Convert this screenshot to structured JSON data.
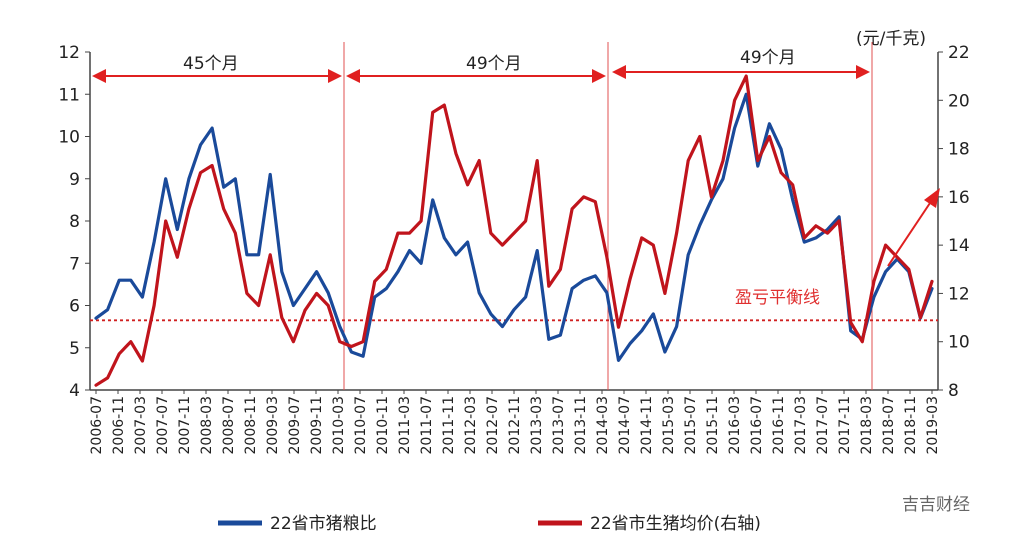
{
  "chart_data": {
    "type": "line",
    "y_left": {
      "ticks": [
        4,
        5,
        6,
        7,
        8,
        9,
        10,
        11,
        12
      ],
      "range": [
        4,
        12
      ]
    },
    "y_right": {
      "ticks": [
        8,
        10,
        12,
        14,
        16,
        18,
        20,
        22
      ],
      "range": [
        8,
        22
      ],
      "unit": "(元/千克)"
    },
    "x_ticks": [
      "2006-07",
      "2006-11",
      "2007-03",
      "2007-07",
      "2007-11",
      "2008-03",
      "2008-07",
      "2008-11",
      "2009-03",
      "2009-07",
      "2009-11",
      "2010-03",
      "2010-07",
      "2010-11",
      "2011-03",
      "2011-07",
      "2011-11",
      "2012-03",
      "2012-07",
      "2012-11",
      "2013-03",
      "2013-07",
      "2013-11",
      "2014-03",
      "2014-07",
      "2014-11",
      "2015-03",
      "2015-07",
      "2015-11",
      "2016-03",
      "2016-07",
      "2016-11",
      "2017-03",
      "2017-07",
      "2017-11",
      "2018-03",
      "2018-07",
      "2018-11",
      "2019-03"
    ],
    "series": [
      {
        "name": "22省市猪粮比",
        "axis": "left",
        "color": "#1a4a9a",
        "values": [
          5.7,
          5.9,
          6.6,
          6.6,
          6.2,
          7.5,
          9.0,
          7.8,
          9.0,
          9.8,
          10.2,
          8.8,
          9.0,
          7.2,
          7.2,
          9.1,
          6.8,
          6.0,
          6.4,
          6.8,
          6.3,
          5.5,
          4.9,
          4.8,
          6.2,
          6.4,
          6.8,
          7.3,
          7.0,
          8.5,
          7.6,
          7.2,
          7.5,
          6.3,
          5.8,
          5.5,
          5.9,
          6.2,
          7.3,
          5.2,
          5.3,
          6.4,
          6.6,
          6.7,
          6.3,
          4.7,
          5.1,
          5.4,
          5.8,
          4.9,
          5.5,
          7.2,
          7.9,
          8.5,
          9.0,
          10.2,
          11.0,
          9.3,
          10.3,
          9.7,
          8.5,
          7.5,
          7.6,
          7.8,
          8.1,
          5.4,
          5.2,
          6.2,
          6.8,
          7.1,
          6.8,
          5.7,
          6.4
        ]
      },
      {
        "name": "22省市生猪均价(右轴)",
        "axis": "right",
        "color": "#c0141c",
        "values": [
          8.2,
          8.5,
          9.5,
          10.0,
          9.2,
          11.5,
          15.0,
          13.5,
          15.5,
          17.0,
          17.3,
          15.5,
          14.5,
          12.0,
          11.5,
          13.6,
          11.0,
          10.0,
          11.3,
          12.0,
          11.5,
          10.0,
          9.8,
          10.0,
          12.5,
          13.0,
          14.5,
          14.5,
          15.0,
          19.5,
          19.8,
          17.8,
          16.5,
          17.5,
          14.5,
          14.0,
          14.5,
          15.0,
          17.5,
          12.3,
          13.0,
          15.5,
          16.0,
          15.8,
          13.5,
          10.6,
          12.6,
          14.3,
          14.0,
          12.0,
          14.5,
          17.5,
          18.5,
          16.0,
          17.5,
          20.0,
          21.0,
          17.5,
          18.5,
          17.0,
          16.5,
          14.3,
          14.8,
          14.5,
          15.0,
          10.8,
          10.0,
          12.5,
          14.0,
          13.5,
          13.0,
          11.0,
          12.5
        ]
      }
    ],
    "baseline": {
      "value": 5.65,
      "axis": "left",
      "label": "盈亏平衡线"
    },
    "periods": [
      "45个月",
      "49个月",
      "49个月"
    ],
    "legend": [
      "22省市猪粮比",
      "22省市生猪均价(右轴)"
    ]
  },
  "watermark": "吉吉财经",
  "colors": {
    "blue": "#1a4a9a",
    "red": "#c0141c",
    "arrow": "#e02020",
    "divider": "#e05050"
  }
}
